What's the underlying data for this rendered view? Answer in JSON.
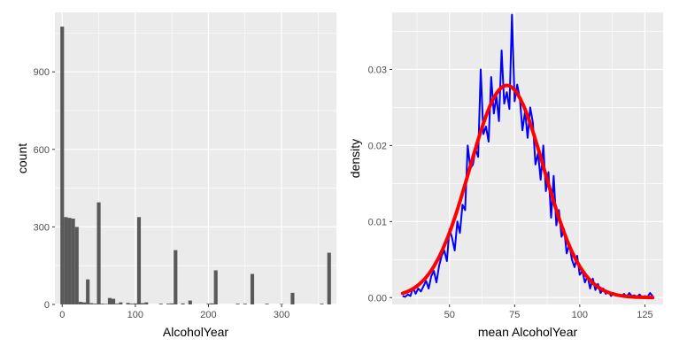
{
  "chart_data": [
    {
      "type": "bar",
      "subtype": "histogram",
      "xlabel": "AlcoholYear",
      "ylabel": "count",
      "xlim": [
        -10,
        375
      ],
      "ylim": [
        0,
        1130
      ],
      "xticks": [
        0,
        100,
        200,
        300
      ],
      "yticks": [
        0,
        300,
        600,
        900
      ],
      "grid": true,
      "background": "#ebebeb",
      "bar_color": "#595959",
      "bins": [
        {
          "x": 0,
          "count": 1075
        },
        {
          "x": 5,
          "count": 338
        },
        {
          "x": 10,
          "count": 335
        },
        {
          "x": 15,
          "count": 332
        },
        {
          "x": 20,
          "count": 300
        },
        {
          "x": 25,
          "count": 10
        },
        {
          "x": 30,
          "count": 8
        },
        {
          "x": 35,
          "count": 97
        },
        {
          "x": 40,
          "count": 5
        },
        {
          "x": 45,
          "count": 3
        },
        {
          "x": 50,
          "count": 395
        },
        {
          "x": 55,
          "count": 3
        },
        {
          "x": 60,
          "count": 2
        },
        {
          "x": 65,
          "count": 25
        },
        {
          "x": 70,
          "count": 22
        },
        {
          "x": 75,
          "count": 3
        },
        {
          "x": 80,
          "count": 8
        },
        {
          "x": 90,
          "count": 6
        },
        {
          "x": 95,
          "count": 3
        },
        {
          "x": 100,
          "count": 4
        },
        {
          "x": 105,
          "count": 338
        },
        {
          "x": 110,
          "count": 5
        },
        {
          "x": 115,
          "count": 8
        },
        {
          "x": 135,
          "count": 3
        },
        {
          "x": 145,
          "count": 3
        },
        {
          "x": 150,
          "count": 4
        },
        {
          "x": 155,
          "count": 210
        },
        {
          "x": 165,
          "count": 4
        },
        {
          "x": 175,
          "count": 15
        },
        {
          "x": 200,
          "count": 3
        },
        {
          "x": 205,
          "count": 4
        },
        {
          "x": 210,
          "count": 132
        },
        {
          "x": 240,
          "count": 3
        },
        {
          "x": 250,
          "count": 3
        },
        {
          "x": 260,
          "count": 118
        },
        {
          "x": 280,
          "count": 3
        },
        {
          "x": 300,
          "count": 2
        },
        {
          "x": 315,
          "count": 45
        },
        {
          "x": 355,
          "count": 3
        },
        {
          "x": 365,
          "count": 200
        }
      ]
    },
    {
      "type": "line",
      "xlabel": "mean AlcoholYear",
      "ylabel": "density",
      "xlim": [
        28,
        132
      ],
      "ylim": [
        -0.0009,
        0.0375
      ],
      "xticks": [
        50,
        75,
        100,
        125
      ],
      "yticks": [
        "0.00",
        "0.01",
        "0.02",
        "0.03"
      ],
      "grid": true,
      "background": "#ebebeb",
      "series": [
        {
          "style": "empirical",
          "color": "#0000ff",
          "x": [
            32,
            33,
            34,
            35,
            36,
            37,
            38,
            39,
            40,
            41,
            42,
            43,
            44,
            45,
            46,
            47,
            48,
            49,
            50,
            51,
            52,
            53,
            54,
            55,
            56,
            57,
            58,
            59,
            60,
            61,
            62,
            63,
            64,
            65,
            66,
            67,
            68,
            69,
            70,
            71,
            72,
            73,
            74,
            75,
            76,
            77,
            78,
            79,
            80,
            81,
            82,
            83,
            84,
            85,
            86,
            87,
            88,
            89,
            90,
            91,
            92,
            93,
            94,
            95,
            96,
            97,
            98,
            99,
            100,
            101,
            102,
            103,
            104,
            105,
            106,
            107,
            108,
            109,
            110,
            111,
            112,
            113,
            114,
            115,
            116,
            117,
            118,
            119,
            120,
            121,
            122,
            123,
            124,
            125,
            126,
            127,
            128
          ],
          "y": [
            0.0002,
            0.0001,
            0.0004,
            0.0002,
            0.0013,
            0.0005,
            0.0012,
            0.0008,
            0.0015,
            0.0022,
            0.0012,
            0.0028,
            0.0035,
            0.002,
            0.0042,
            0.0055,
            0.0062,
            0.0048,
            0.009,
            0.0078,
            0.0062,
            0.01,
            0.0085,
            0.0122,
            0.0115,
            0.02,
            0.017,
            0.0175,
            0.0195,
            0.0185,
            0.03,
            0.0215,
            0.0225,
            0.0205,
            0.029,
            0.0242,
            0.0265,
            0.0232,
            0.0325,
            0.0255,
            0.027,
            0.0248,
            0.0372,
            0.0258,
            0.028,
            0.0262,
            0.022,
            0.0245,
            0.021,
            0.025,
            0.023,
            0.0175,
            0.019,
            0.0155,
            0.02,
            0.014,
            0.0165,
            0.0105,
            0.016,
            0.0095,
            0.0115,
            0.008,
            0.009,
            0.0058,
            0.007,
            0.005,
            0.004,
            0.0055,
            0.003,
            0.0035,
            0.002,
            0.0028,
            0.0012,
            0.0025,
            0.001,
            0.0018,
            0.0006,
            0.0012,
            0.0005,
            0.0008,
            0.0002,
            0.0006,
            0.0003,
            0.0004,
            0.0002,
            0.0005,
            0.0001,
            0.0006,
            0.0002,
            0.0003,
            0.0001,
            0.0004,
            0.0,
            0.0002,
            0.0001,
            0.0006,
            0.0002
          ]
        },
        {
          "style": "normal-fit",
          "color": "#ff0000",
          "mean": 72,
          "sd": 14.3
        }
      ]
    }
  ]
}
